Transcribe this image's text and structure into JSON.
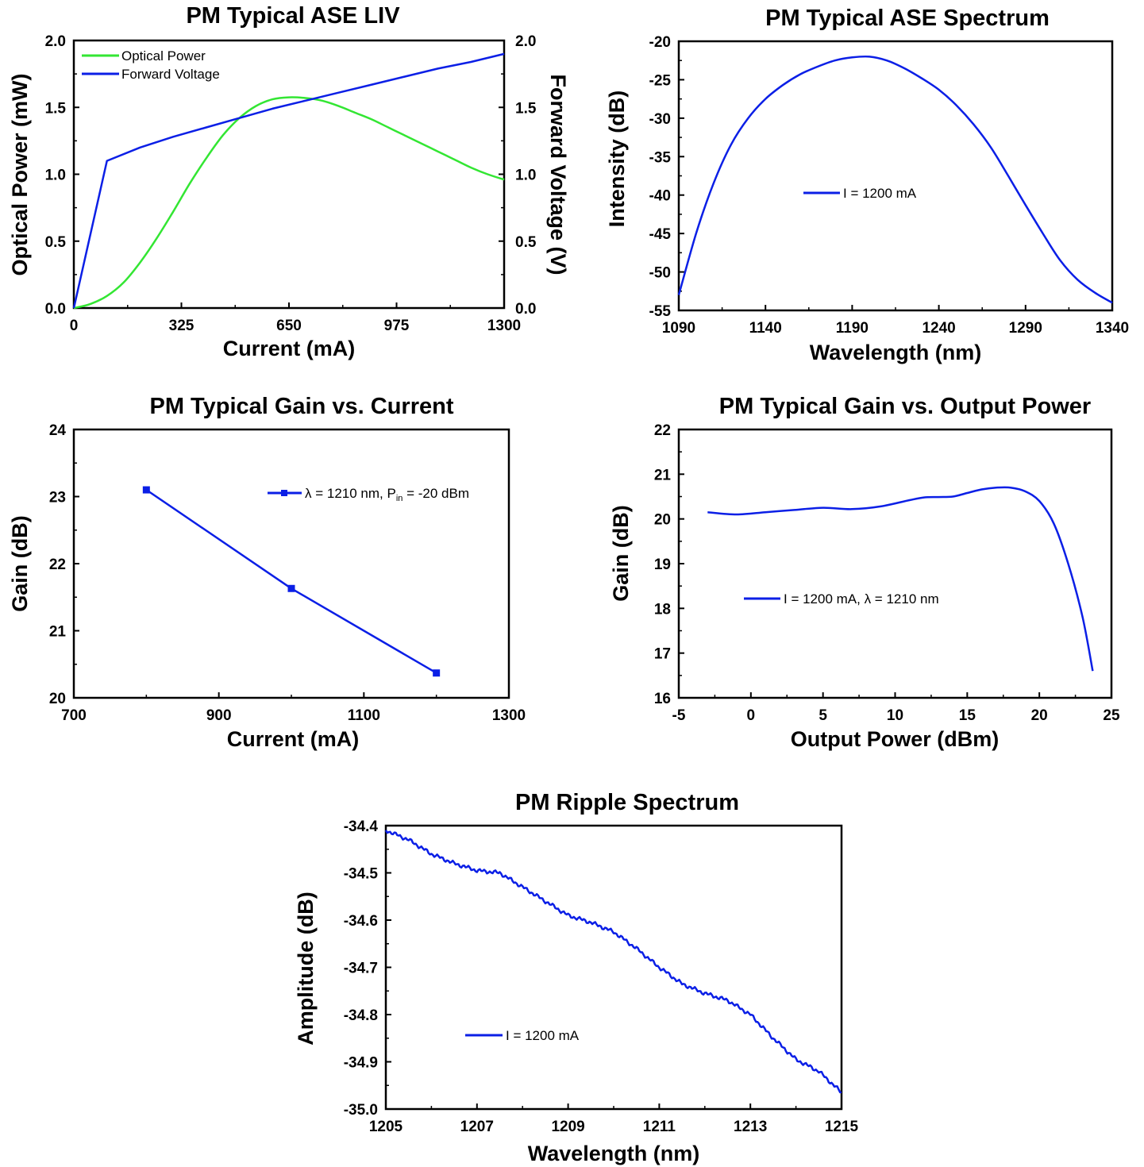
{
  "colors": {
    "blue": "#0b1fe6",
    "green": "#33e633",
    "axis": "#000000"
  },
  "chart_data": [
    {
      "type": "line",
      "title": "PM  Typical ASE LIV",
      "xlabel": "Current (mA)",
      "ylabel": "Optical Power (mW)",
      "y2label": "Forward Voltage (V)",
      "xlim": [
        0,
        1300
      ],
      "ylim": [
        0,
        2.0
      ],
      "y2lim": [
        0,
        2.0
      ],
      "xticks": [
        "0",
        "325",
        "650",
        "975",
        "1300"
      ],
      "yticks": [
        "0.0",
        "0.5",
        "1.0",
        "1.5",
        "2.0"
      ],
      "y2ticks": [
        "0.0",
        "0.5",
        "1.0",
        "1.5",
        "2.0"
      ],
      "legend_position": "top-left",
      "series": [
        {
          "name": "Optical Power",
          "axis": "left",
          "color": "#33e633",
          "x": [
            0,
            50,
            100,
            150,
            200,
            250,
            300,
            350,
            400,
            450,
            500,
            550,
            600,
            650,
            700,
            750,
            800,
            850,
            900,
            950,
            1000,
            1050,
            1100,
            1150,
            1200,
            1250,
            1300
          ],
          "y": [
            0,
            0.03,
            0.09,
            0.19,
            0.34,
            0.52,
            0.72,
            0.93,
            1.12,
            1.29,
            1.42,
            1.51,
            1.56,
            1.575,
            1.57,
            1.55,
            1.51,
            1.46,
            1.41,
            1.35,
            1.29,
            1.23,
            1.17,
            1.11,
            1.05,
            1.0,
            0.96
          ]
        },
        {
          "name": "Forward Voltage",
          "axis": "right",
          "color": "#0b1fe6",
          "x": [
            0,
            100,
            200,
            300,
            400,
            500,
            600,
            700,
            800,
            900,
            1000,
            1100,
            1200,
            1300
          ],
          "y": [
            0,
            1.1,
            1.2,
            1.28,
            1.35,
            1.42,
            1.49,
            1.55,
            1.61,
            1.67,
            1.73,
            1.79,
            1.84,
            1.9
          ]
        }
      ]
    },
    {
      "type": "line",
      "title": "PM  Typical ASE Spectrum",
      "xlabel": "Wavelength (nm)",
      "ylabel": "Intensity (dB)",
      "xlim": [
        1090,
        1340
      ],
      "ylim": [
        -55,
        -20
      ],
      "xticks": [
        "1090",
        "1140",
        "1190",
        "1240",
        "1290",
        "1340"
      ],
      "yticks": [
        "-55",
        "-50",
        "-45",
        "-40",
        "-35",
        "-30",
        "-25",
        "-20"
      ],
      "legend_position": "center-left",
      "series": [
        {
          "name": "I = 1200 mA",
          "color": "#0b1fe6",
          "x": [
            1090,
            1100,
            1110,
            1120,
            1130,
            1140,
            1150,
            1160,
            1170,
            1180,
            1190,
            1200,
            1210,
            1220,
            1230,
            1240,
            1250,
            1260,
            1270,
            1280,
            1290,
            1300,
            1310,
            1320,
            1330,
            1340
          ],
          "y": [
            -53,
            -45,
            -38.5,
            -33.5,
            -30,
            -27.5,
            -25.7,
            -24.3,
            -23.3,
            -22.5,
            -22.1,
            -22.0,
            -22.5,
            -23.5,
            -24.8,
            -26.3,
            -28.3,
            -30.8,
            -33.8,
            -37.5,
            -41.3,
            -45,
            -48.5,
            -51,
            -52.7,
            -54
          ]
        }
      ]
    },
    {
      "type": "line",
      "title": "PM  Typical Gain vs. Current",
      "xlabel": "Current (mA)",
      "ylabel": "Gain (dB)",
      "xlim": [
        700,
        1300
      ],
      "ylim": [
        20,
        24
      ],
      "xticks": [
        "700",
        "900",
        "1100",
        "1300"
      ],
      "yticks": [
        "20",
        "21",
        "22",
        "23",
        "24"
      ],
      "legend_position": "top-right",
      "legend_label": "λ = 1210 nm, P",
      "legend_sub": "in",
      "legend_tail": " = -20 dBm",
      "series": [
        {
          "name": "λ = 1210 nm, Pin = -20 dBm",
          "color": "#0b1fe6",
          "markers": true,
          "x": [
            800,
            1000,
            1200
          ],
          "y": [
            23.1,
            21.63,
            20.37
          ]
        }
      ]
    },
    {
      "type": "line",
      "title": "PM  Typical Gain vs. Output Power",
      "xlabel": "Output Power (dBm)",
      "ylabel": "Gain (dB)",
      "xlim": [
        -5,
        25
      ],
      "ylim": [
        16,
        22
      ],
      "xticks": [
        "-5",
        "0",
        "5",
        "10",
        "15",
        "20",
        "25"
      ],
      "yticks": [
        "16",
        "17",
        "18",
        "19",
        "20",
        "21",
        "22"
      ],
      "legend_position": "center-left",
      "series": [
        {
          "name": "I = 1200 mA, λ = 1210 nm",
          "color": "#0b1fe6",
          "x": [
            -3,
            -1,
            1,
            3,
            5,
            7,
            9,
            11,
            12,
            13,
            14,
            15,
            16,
            17,
            18,
            19,
            20,
            21,
            22,
            23,
            23.7
          ],
          "y": [
            20.15,
            20.1,
            20.15,
            20.2,
            20.25,
            20.22,
            20.28,
            20.42,
            20.48,
            20.49,
            20.5,
            20.58,
            20.66,
            20.7,
            20.7,
            20.62,
            20.4,
            19.9,
            19.0,
            17.8,
            16.6
          ]
        }
      ]
    },
    {
      "type": "line",
      "title": "PM  Ripple Spectrum",
      "xlabel": "Wavelength (nm)",
      "ylabel": "Amplitude (dB)",
      "xlim": [
        1205,
        1215
      ],
      "ylim": [
        -35.0,
        -34.4
      ],
      "xticks": [
        "1205",
        "1207",
        "1209",
        "1211",
        "1213",
        "1215"
      ],
      "yticks": [
        "-35.0",
        "-34.9",
        "-34.8",
        "-34.7",
        "-34.6",
        "-34.5",
        "-34.4"
      ],
      "legend_position": "bottom-left",
      "series": [
        {
          "name": "I = 1200 mA",
          "color": "#0b1fe6",
          "x": [
            1205,
            1205.5,
            1206,
            1206.5,
            1207,
            1207.5,
            1208,
            1208.5,
            1209,
            1209.5,
            1210,
            1210.5,
            1211,
            1211.5,
            1212,
            1212.5,
            1213,
            1213.5,
            1214,
            1214.5,
            1215
          ],
          "y": [
            -34.41,
            -34.43,
            -34.46,
            -34.48,
            -34.495,
            -34.5,
            -34.53,
            -34.56,
            -34.59,
            -34.605,
            -34.625,
            -34.66,
            -34.7,
            -34.735,
            -34.755,
            -34.77,
            -34.8,
            -34.85,
            -34.895,
            -34.92,
            -34.965
          ]
        }
      ]
    }
  ]
}
